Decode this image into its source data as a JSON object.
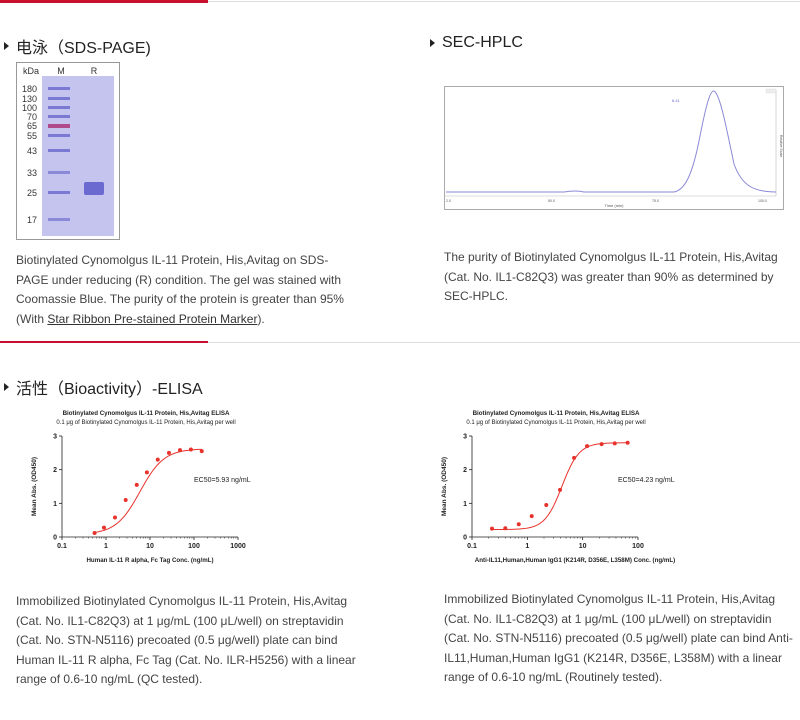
{
  "sections": {
    "sds": {
      "title": "电泳（SDS-PAGE)",
      "gel": {
        "unit": "kDa",
        "lanes": [
          "M",
          "R"
        ],
        "markers": [
          "180",
          "130",
          "100",
          "70",
          "65",
          "55",
          "43",
          "33",
          "25",
          "17"
        ]
      },
      "description_1": "Biotinylated Cynomolgus IL-11 Protein, His,Avitag on SDS-PAGE under reducing (R) condition. The gel was stained with Coomassie Blue. The purity of the protein is greater than 95% (With ",
      "link_text": "Star Ribbon Pre-stained Protein Marker",
      "description_2": ")."
    },
    "sec": {
      "title": "SEC-HPLC",
      "peak_label": "8.41",
      "x_axis_label": "Time (min)",
      "y_axis_label": "Relative Scale",
      "x_ticks": [
        "2.0",
        "50.0",
        "75.0",
        "100.0",
        "20.0"
      ],
      "description": "The purity of Biotinylated Cynomolgus IL-11 Protein, His,Avitag (Cat. No. IL1-C82Q3) was greater than 90% as determined by SEC-HPLC."
    },
    "elisa": {
      "title": "活性（Bioactivity）-ELISA",
      "description_left": "Immobilized Biotinylated Cynomolgus IL-11 Protein, His,Avitag (Cat. No. IL1-C82Q3) at 1 μg/mL (100 μL/well) on streptavidin (Cat. No. STN-N5116) precoated (0.5 μg/well) plate can bind Human IL-11 R alpha, Fc Tag (Cat. No. ILR-H5256) with a linear range of 0.6-10 ng/mL (QC tested).",
      "description_right": "Immobilized Biotinylated Cynomolgus IL-11 Protein, His,Avitag (Cat. No. IL1-C82Q3) at 1 μg/mL (100 μL/well) on streptavidin (Cat. No. STN-N5116) precoated (0.5 μg/well) plate can bind Anti-IL11,Human,Human IgG1 (K214R, D356E, L358M) with a linear range of 0.6-10 ng/mL (Routinely tested)."
    }
  },
  "colors": {
    "accent": "#c8102e",
    "curve": "#e8322c",
    "gel_bg": "#c4c4ee",
    "sec_line": "#8a8ad6"
  },
  "chart_data": [
    {
      "type": "scatter",
      "title": "Biotinylated Cynomolgus IL-11 Protein, His,Avitag ELISA",
      "subtitle": "0.1 μg of Biotinylated Cynomolgus IL-11 Protein, His,Avitag per well",
      "xlabel": "Human IL-11 R alpha, Fc Tag Conc. (ng/mL)",
      "ylabel": "Mean Abs. (OD450)",
      "xscale": "log",
      "xlim": [
        0.1,
        1000
      ],
      "ylim": [
        0,
        3
      ],
      "x_ticks": [
        "0.1",
        "1",
        "10",
        "100",
        "1000"
      ],
      "y_ticks": [
        "0",
        "1",
        "2",
        "3"
      ],
      "annotation": "EC50=5.93 ng/mL",
      "x": [
        0.55,
        0.9,
        1.6,
        2.8,
        5.0,
        8.5,
        15,
        27,
        48,
        85,
        150
      ],
      "y": [
        0.12,
        0.28,
        0.58,
        1.1,
        1.55,
        1.92,
        2.3,
        2.5,
        2.58,
        2.6,
        2.55
      ],
      "fit": {
        "bottom": 0.08,
        "top": 2.62,
        "ec50": 5.93,
        "hill": 1.6
      }
    },
    {
      "type": "scatter",
      "title": "Biotinylated Cynomolgus IL-11 Protein, His,Avitag ELISA",
      "subtitle": "0.1 μg of Biotinylated Cynomolgus IL-11 Protein, His,Avitag per well",
      "xlabel": "Anti-IL11,Human,Human IgG1 (K214R, D356E, L358M) Conc. (ng/mL)",
      "ylabel": "Mean Abs. (OD450)",
      "xscale": "log",
      "xlim": [
        0.1,
        100
      ],
      "ylim": [
        0,
        3
      ],
      "x_ticks": [
        "0.1",
        "1",
        "10",
        "100"
      ],
      "y_ticks": [
        "0",
        "1",
        "2",
        "3"
      ],
      "annotation": "EC50=4.23 ng/mL",
      "x": [
        0.23,
        0.4,
        0.7,
        1.2,
        2.2,
        3.9,
        7,
        12,
        22,
        38,
        65
      ],
      "y": [
        0.25,
        0.26,
        0.38,
        0.62,
        0.95,
        1.4,
        2.35,
        2.7,
        2.76,
        2.78,
        2.8
      ],
      "fit": {
        "bottom": 0.22,
        "top": 2.8,
        "ec50": 4.23,
        "hill": 2.8
      }
    }
  ]
}
